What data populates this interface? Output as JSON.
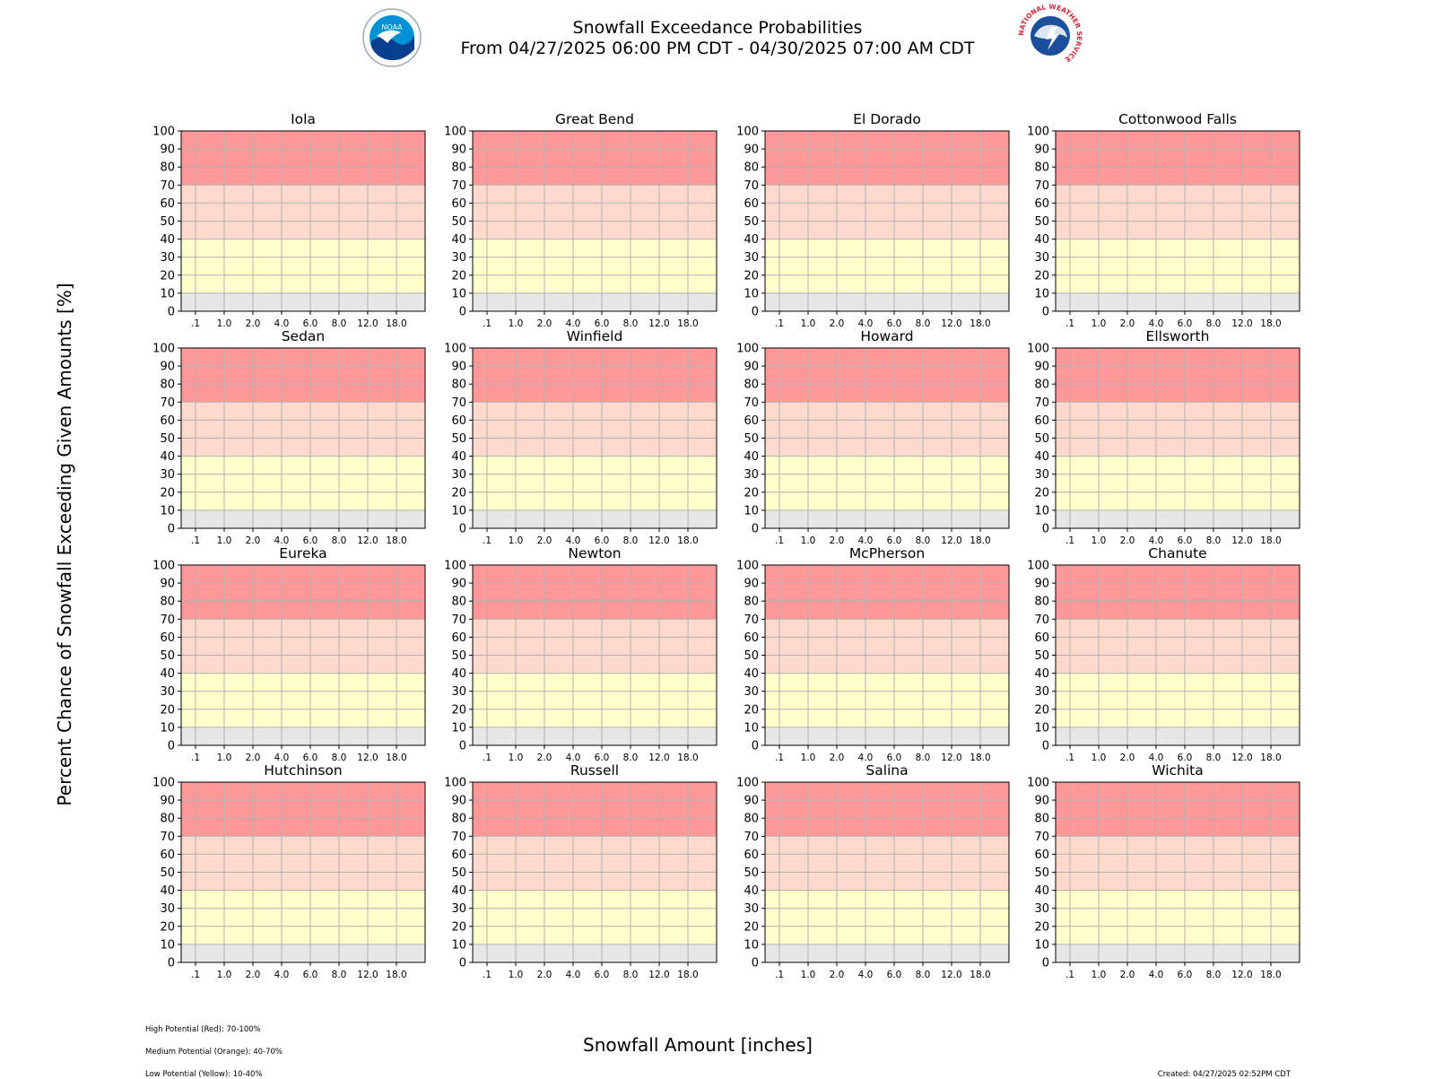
{
  "header": {
    "title": "Snowfall Exceedance Probabilities",
    "subtitle": "From 04/27/2025 06:00 PM CDT - 04/30/2025 07:00 AM CDT",
    "noaa_logo_text": "NOAA",
    "nws_logo_text": "NATIONAL WEATHER SERVICE"
  },
  "colors": {
    "high": "#ff9999",
    "medium": "#ffd9cc",
    "low": "#ffffcc",
    "minimal": "#e6e6e6",
    "grid": "#b0b0b0",
    "noaa_blue": "#0091d5",
    "nws_blue": "#1b4e9b",
    "nws_red": "#d7263d"
  },
  "legend": {
    "high": "High Potential (Red): 70-100%",
    "medium": "Medium Potential (Orange): 40-70%",
    "low": "Low Potential (Yellow): 10-40%"
  },
  "footer": {
    "created": "Created: 04/27/2025 02:52PM CDT"
  },
  "chart_data": {
    "type": "line",
    "xlabel": "Snowfall Amount [inches]",
    "ylabel": "Percent Chance of Snowfall Exceeding Given Amounts [%]",
    "x_tick_labels": [
      ".1",
      "1.0",
      "2.0",
      "4.0",
      "6.0",
      "8.0",
      "12.0",
      "18.0"
    ],
    "y_ticks": [
      0,
      10,
      20,
      30,
      40,
      50,
      60,
      70,
      80,
      90,
      100
    ],
    "ylim": [
      0,
      100
    ],
    "grid": true,
    "bands": [
      {
        "level": "minimal",
        "from": 0,
        "to": 10
      },
      {
        "level": "low",
        "from": 10,
        "to": 40
      },
      {
        "level": "medium",
        "from": 40,
        "to": 70
      },
      {
        "level": "high",
        "from": 70,
        "to": 100
      }
    ],
    "panels": [
      {
        "title": "Iola",
        "values": []
      },
      {
        "title": "Great Bend",
        "values": []
      },
      {
        "title": "El Dorado",
        "values": []
      },
      {
        "title": "Cottonwood Falls",
        "values": []
      },
      {
        "title": "Sedan",
        "values": []
      },
      {
        "title": "Winfield",
        "values": []
      },
      {
        "title": "Howard",
        "values": []
      },
      {
        "title": "Ellsworth",
        "values": []
      },
      {
        "title": "Eureka",
        "values": []
      },
      {
        "title": "Newton",
        "values": []
      },
      {
        "title": "McPherson",
        "values": []
      },
      {
        "title": "Chanute",
        "values": []
      },
      {
        "title": "Hutchinson",
        "values": []
      },
      {
        "title": "Russell",
        "values": []
      },
      {
        "title": "Salina",
        "values": []
      },
      {
        "title": "Wichita",
        "values": []
      }
    ]
  }
}
